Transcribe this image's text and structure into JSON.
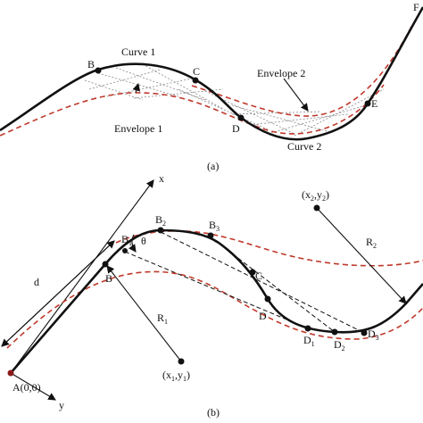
{
  "panel_a": {
    "caption": "(a)",
    "curve1": "Curve 1",
    "curve2": "Curve 2",
    "envelope1": "Envelope 1",
    "envelope2": "Envelope 2",
    "points": {
      "B": "B",
      "C": "C",
      "D": "D",
      "E": "E",
      "F": "F"
    }
  },
  "panel_b": {
    "caption": "(b)",
    "x_axis": "x",
    "y_axis": "y",
    "origin": "A(0,0)",
    "d": "d",
    "theta": "θ",
    "r1": {
      "text": "R",
      "sub": "1"
    },
    "r2": {
      "text": "R",
      "sub": "2"
    },
    "center1": [
      "(x",
      "1",
      ",y",
      "1",
      ")"
    ],
    "center2": [
      "(x",
      "2",
      ",y",
      "2",
      ")"
    ],
    "points": {
      "B": {
        "text": "B"
      },
      "B1": {
        "text": "B",
        "sub": "1"
      },
      "B2": {
        "text": "B",
        "sub": "2"
      },
      "B3": {
        "text": "B",
        "sub": "3"
      },
      "C": {
        "text": "C"
      },
      "D": {
        "text": "D"
      },
      "D1": {
        "text": "D",
        "sub": "1"
      },
      "D2": {
        "text": "D",
        "sub": "2"
      },
      "D3": {
        "text": "D",
        "sub": "3"
      }
    }
  }
}
